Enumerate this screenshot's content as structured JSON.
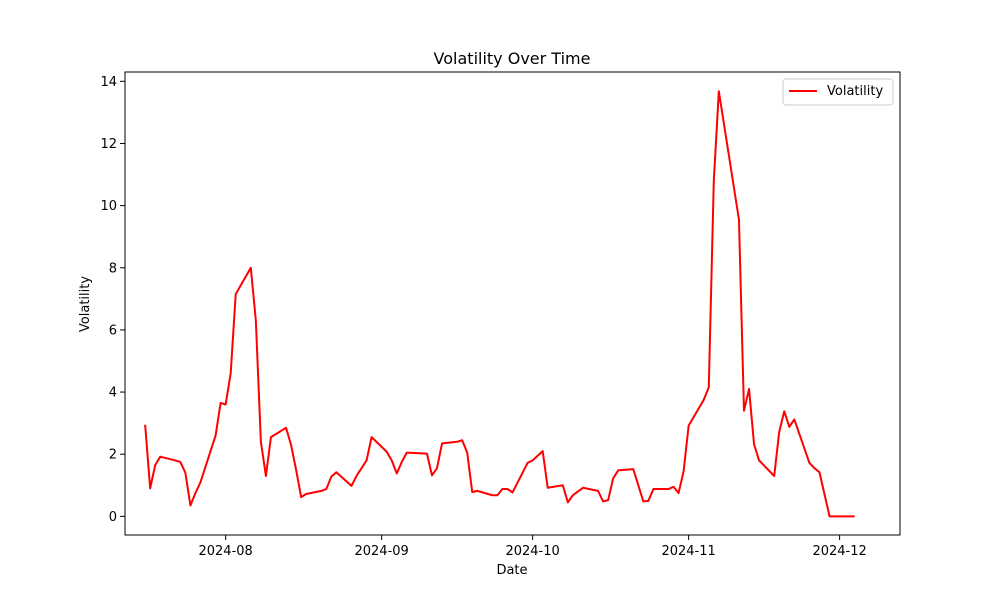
{
  "chart_data": {
    "type": "line",
    "title": "Volatility Over Time",
    "xlabel": "Date",
    "ylabel": "Volatility",
    "xlim": [
      "2024-07-12",
      "2024-12-13"
    ],
    "ylim": [
      -0.6,
      14.3
    ],
    "x_ticks": [
      "2024-08-01",
      "2024-09-01",
      "2024-10-01",
      "2024-11-01",
      "2024-12-01"
    ],
    "x_tick_labels": [
      "2024-08",
      "2024-09",
      "2024-10",
      "2024-11",
      "2024-12"
    ],
    "y_ticks": [
      0,
      2,
      4,
      6,
      8,
      10,
      12,
      14
    ],
    "y_tick_labels": [
      "0",
      "2",
      "4",
      "6",
      "8",
      "10",
      "12",
      "14"
    ],
    "grid": false,
    "legend_position": "top-right",
    "series": [
      {
        "name": "Volatility",
        "color": "#ff0000",
        "points": [
          [
            "2024-07-16",
            2.95
          ],
          [
            "2024-07-17",
            0.9
          ],
          [
            "2024-07-18",
            1.65
          ],
          [
            "2024-07-19",
            1.92
          ],
          [
            "2024-07-22",
            1.8
          ],
          [
            "2024-07-23",
            1.75
          ],
          [
            "2024-07-24",
            1.4
          ],
          [
            "2024-07-25",
            0.35
          ],
          [
            "2024-07-26",
            0.75
          ],
          [
            "2024-07-27",
            1.1
          ],
          [
            "2024-07-30",
            2.6
          ],
          [
            "2024-07-31",
            3.65
          ],
          [
            "2024-08-01",
            3.6
          ],
          [
            "2024-08-02",
            4.6
          ],
          [
            "2024-08-03",
            7.15
          ],
          [
            "2024-08-06",
            8.0
          ],
          [
            "2024-08-07",
            6.3
          ],
          [
            "2024-08-08",
            2.4
          ],
          [
            "2024-08-09",
            1.3
          ],
          [
            "2024-08-10",
            2.55
          ],
          [
            "2024-08-13",
            2.85
          ],
          [
            "2024-08-14",
            2.3
          ],
          [
            "2024-08-15",
            1.5
          ],
          [
            "2024-08-16",
            0.62
          ],
          [
            "2024-08-17",
            0.72
          ],
          [
            "2024-08-20",
            0.82
          ],
          [
            "2024-08-21",
            0.88
          ],
          [
            "2024-08-22",
            1.28
          ],
          [
            "2024-08-23",
            1.42
          ],
          [
            "2024-08-26",
            0.98
          ],
          [
            "2024-08-27",
            1.3
          ],
          [
            "2024-08-29",
            1.8
          ],
          [
            "2024-08-30",
            2.55
          ],
          [
            "2024-09-02",
            2.08
          ],
          [
            "2024-09-03",
            1.8
          ],
          [
            "2024-09-04",
            1.38
          ],
          [
            "2024-09-05",
            1.75
          ],
          [
            "2024-09-06",
            2.05
          ],
          [
            "2024-09-10",
            2.02
          ],
          [
            "2024-09-11",
            1.32
          ],
          [
            "2024-09-12",
            1.55
          ],
          [
            "2024-09-13",
            2.35
          ],
          [
            "2024-09-16",
            2.4
          ],
          [
            "2024-09-17",
            2.45
          ],
          [
            "2024-09-18",
            2.05
          ],
          [
            "2024-09-19",
            0.78
          ],
          [
            "2024-09-20",
            0.82
          ],
          [
            "2024-09-23",
            0.68
          ],
          [
            "2024-09-24",
            0.68
          ],
          [
            "2024-09-25",
            0.88
          ],
          [
            "2024-09-26",
            0.88
          ],
          [
            "2024-09-27",
            0.77
          ],
          [
            "2024-09-30",
            1.72
          ],
          [
            "2024-10-01",
            1.8
          ],
          [
            "2024-10-03",
            2.1
          ],
          [
            "2024-10-04",
            0.92
          ],
          [
            "2024-10-07",
            1.0
          ],
          [
            "2024-10-08",
            0.45
          ],
          [
            "2024-10-09",
            0.68
          ],
          [
            "2024-10-11",
            0.92
          ],
          [
            "2024-10-14",
            0.82
          ],
          [
            "2024-10-15",
            0.48
          ],
          [
            "2024-10-16",
            0.52
          ],
          [
            "2024-10-17",
            1.22
          ],
          [
            "2024-10-18",
            1.48
          ],
          [
            "2024-10-21",
            1.52
          ],
          [
            "2024-10-23",
            0.48
          ],
          [
            "2024-10-24",
            0.5
          ],
          [
            "2024-10-25",
            0.88
          ],
          [
            "2024-10-28",
            0.88
          ],
          [
            "2024-10-29",
            0.95
          ],
          [
            "2024-10-30",
            0.75
          ],
          [
            "2024-10-31",
            1.45
          ],
          [
            "2024-11-01",
            2.92
          ],
          [
            "2024-11-04",
            3.75
          ],
          [
            "2024-11-05",
            4.15
          ],
          [
            "2024-11-06",
            10.8
          ],
          [
            "2024-11-07",
            13.68
          ],
          [
            "2024-11-11",
            9.55
          ],
          [
            "2024-11-12",
            3.4
          ],
          [
            "2024-11-13",
            4.1
          ],
          [
            "2024-11-14",
            2.32
          ],
          [
            "2024-11-15",
            1.8
          ],
          [
            "2024-11-18",
            1.3
          ],
          [
            "2024-11-19",
            2.72
          ],
          [
            "2024-11-20",
            3.38
          ],
          [
            "2024-11-21",
            2.88
          ],
          [
            "2024-11-22",
            3.12
          ],
          [
            "2024-11-25",
            1.72
          ],
          [
            "2024-11-26",
            1.55
          ],
          [
            "2024-11-27",
            1.42
          ],
          [
            "2024-11-29",
            0.0
          ],
          [
            "2024-12-04",
            0.0
          ]
        ]
      }
    ]
  }
}
